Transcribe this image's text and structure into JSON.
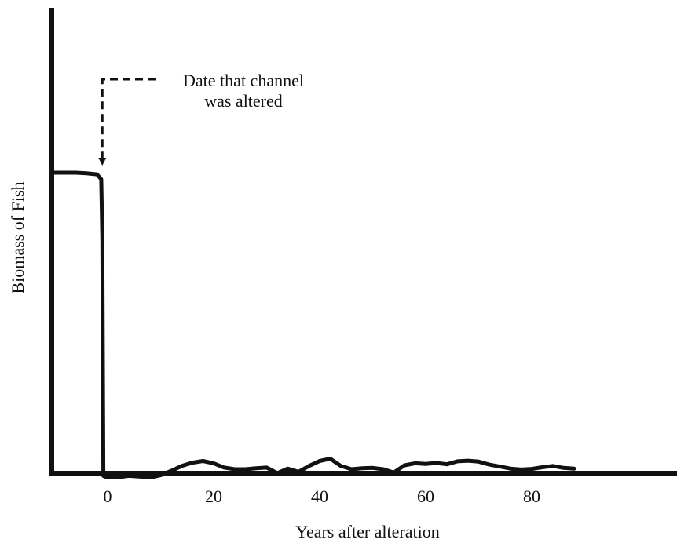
{
  "chart_data": {
    "type": "line",
    "xlabel": "Years after alteration",
    "ylabel": "Biomass of Fish",
    "xlim": [
      -10,
      88
    ],
    "ylim": [
      0,
      100
    ],
    "x_ticks": [
      0,
      20,
      40,
      60,
      80
    ],
    "y_ticks": [],
    "grid": false,
    "annotation": {
      "lines": [
        "Date that channel",
        "was altered"
      ],
      "x": -1
    },
    "series": [
      {
        "x": [
          -10,
          -8,
          -6,
          -4,
          -2,
          -1.2,
          -1,
          -0.8,
          0,
          2,
          4,
          6,
          8,
          10,
          12,
          14,
          16,
          18,
          20,
          22,
          24,
          26,
          28,
          30,
          32,
          34,
          36,
          38,
          40,
          42,
          44,
          46,
          48,
          50,
          52,
          54,
          56,
          58,
          60,
          62,
          64,
          66,
          68,
          70,
          72,
          74,
          76,
          78,
          80,
          82,
          84,
          86,
          88
        ],
        "values": [
          100,
          100,
          100,
          99.8,
          99.5,
          98,
          80,
          8,
          7.5,
          7.6,
          8,
          7.8,
          7.5,
          8.2,
          9.5,
          11,
          12,
          12.5,
          11.8,
          10.5,
          10,
          10,
          10.3,
          10.5,
          8.8,
          10.2,
          9.2,
          11,
          12.5,
          13.2,
          11,
          10,
          10.3,
          10.4,
          10,
          9,
          11.2,
          11.8,
          11.6,
          11.9,
          11.5,
          12.4,
          12.6,
          12.3,
          11.4,
          10.8,
          10.2,
          9.9,
          10.1,
          10.6,
          11,
          10.4,
          10.2
        ]
      }
    ]
  }
}
